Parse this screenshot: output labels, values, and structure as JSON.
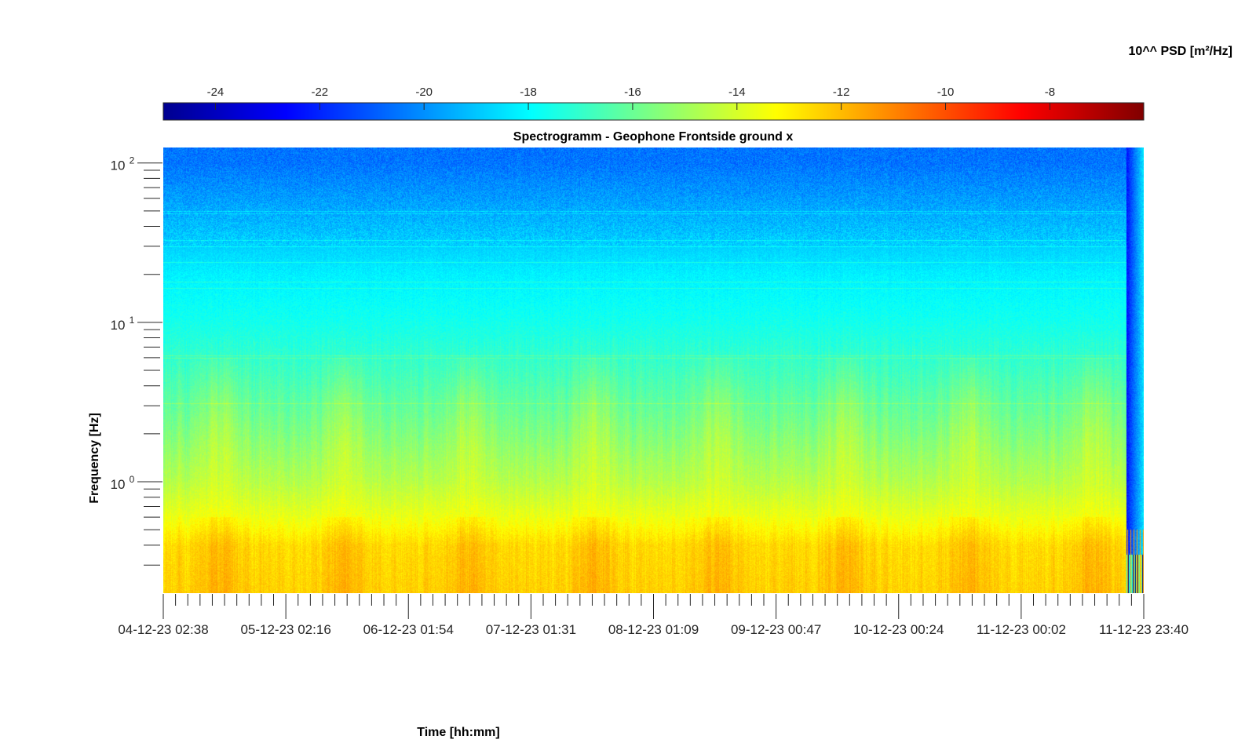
{
  "chart_data": {
    "type": "heatmap",
    "title": "Spectrogramm - Geophone Frontside ground x",
    "xlabel": "Time [hh:mm]",
    "ylabel": "Frequency [Hz]",
    "x_tick_labels": [
      "04-12-23 02:38",
      "05-12-23 02:16",
      "06-12-23 01:54",
      "07-12-23 01:31",
      "08-12-23 01:09",
      "09-12-23 00:47",
      "10-12-23 00:24",
      "11-12-23 00:02",
      "11-12-23 23:40"
    ],
    "y_scale": "log",
    "ylim": [
      0.2,
      125
    ],
    "y_major_ticks": [
      {
        "value": 1,
        "base": "10",
        "exp": "0"
      },
      {
        "value": 10,
        "base": "10",
        "exp": "1"
      },
      {
        "value": 100,
        "base": "10",
        "exp": "2"
      }
    ],
    "colorbar": {
      "label": "10^^ PSD [m²/Hz]",
      "location": "top",
      "colormap": "jet",
      "clim": [
        -25,
        -6.2
      ],
      "ticks": [
        -24,
        -22,
        -20,
        -18,
        -16,
        -14,
        -12,
        -10,
        -8
      ],
      "tick_labels": [
        "-24",
        "-22",
        "-20",
        "-18",
        "-16",
        "-14",
        "-12",
        "-10",
        "-8"
      ]
    },
    "description_of_field": {
      "approx_log10_psd_by_frequency": [
        {
          "freq_hz": 100,
          "value": -20.5
        },
        {
          "freq_hz": 50,
          "value": -19.5
        },
        {
          "freq_hz": 20,
          "value": -18.2
        },
        {
          "freq_hz": 10,
          "value": -17.6
        },
        {
          "freq_hz": 5,
          "value": -16.8
        },
        {
          "freq_hz": 2,
          "value": -15.6
        },
        {
          "freq_hz": 1,
          "value": -14.6
        },
        {
          "freq_hz": 0.6,
          "value": -13.6
        },
        {
          "freq_hz": 0.4,
          "value": -12.6
        },
        {
          "freq_hz": 0.2,
          "value": -12.4
        }
      ]
    }
  }
}
